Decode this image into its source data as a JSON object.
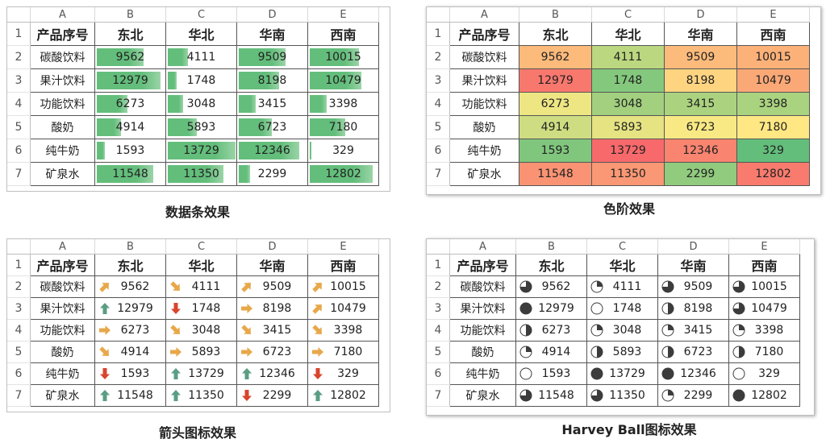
{
  "sheet": {
    "columns": [
      "A",
      "B",
      "C",
      "D",
      "E"
    ],
    "rows": [
      "1",
      "2",
      "3",
      "4",
      "5",
      "6",
      "7"
    ],
    "header": [
      "产品序号",
      "东北",
      "华北",
      "华南",
      "西南"
    ],
    "products": [
      "碳酸饮料",
      "果汁饮料",
      "功能饮料",
      "酸奶",
      "纯牛奶",
      "矿泉水"
    ],
    "values": [
      [
        9562,
        4111,
        9509,
        10015
      ],
      [
        12979,
        1748,
        8198,
        10479
      ],
      [
        6273,
        3048,
        3415,
        3398
      ],
      [
        4914,
        5893,
        6723,
        7180
      ],
      [
        1593,
        13729,
        12346,
        329
      ],
      [
        11548,
        11350,
        2299,
        12802
      ]
    ]
  },
  "captions": {
    "databar": "数据条效果",
    "colorscale": "色阶效果",
    "arrows": "箭头图标效果",
    "harvey": "Harvey Ball图标效果"
  },
  "colors": {
    "bar": "#63be7b",
    "scale_low": "#63be7b",
    "scale_mid": "#ffeb84",
    "scale_high": "#f8696b",
    "arrow_up": "#5a9e84",
    "arrow_upright": "#e8a84a",
    "arrow_right": "#e8a84a",
    "arrow_downright": "#e8a84a",
    "arrow_down": "#d9452d",
    "ball": "#3c3c3c"
  }
}
